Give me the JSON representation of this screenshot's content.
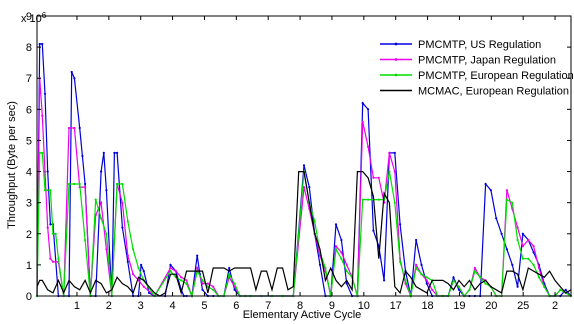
{
  "chart_data": {
    "type": "line",
    "title": "",
    "xlabel": "Elementary Active Cycle",
    "ylabel": "Throughput (Byte per sec)",
    "y_multiplier": "x 10",
    "y_multiplier_exp": "6",
    "ylim": [
      0,
      9
    ],
    "yticks": [
      "0",
      "1",
      "2",
      "3",
      "4",
      "5",
      "6",
      "7",
      "8",
      "9"
    ],
    "xlim": [
      0,
      100
    ],
    "xtick_labels": [
      "1",
      "2",
      "3",
      "4",
      "5",
      "6",
      "7",
      "8",
      "9",
      "10",
      "17",
      "18",
      "19",
      "20",
      "25",
      "2"
    ],
    "legend_position": "top-right",
    "grid": false,
    "series": [
      {
        "name": "PMCMTP, US Regulation",
        "color": "#0000dd",
        "marker": "dot",
        "x": [
          0,
          0.5,
          1,
          1.5,
          2,
          2.5,
          3,
          4,
          5,
          6,
          6.5,
          7,
          8,
          8.5,
          9,
          10,
          11,
          12,
          12.5,
          13,
          14,
          14.5,
          15,
          16,
          17,
          18,
          19,
          19.5,
          20,
          21,
          22,
          24,
          25,
          26,
          27,
          27.5,
          28,
          29,
          30,
          30.5,
          31,
          32,
          33,
          34,
          35,
          36,
          37,
          38,
          39,
          40,
          42,
          44,
          46,
          48,
          50,
          51,
          52,
          53,
          54,
          55,
          56,
          57,
          58,
          59,
          60,
          61,
          62,
          63,
          64,
          65,
          66,
          67,
          68,
          69,
          70,
          71,
          72,
          73,
          74,
          75,
          76,
          77,
          78,
          79,
          80,
          81,
          82,
          83,
          84,
          85,
          86,
          87,
          88,
          89,
          90,
          91,
          92,
          93,
          94,
          95,
          96,
          97,
          98,
          99,
          100
        ],
        "y": [
          0,
          8.1,
          8.1,
          6.5,
          4.0,
          2.3,
          2.3,
          0,
          0,
          0,
          7.2,
          7.0,
          5.4,
          4.5,
          3.6,
          0,
          0,
          4.0,
          4.6,
          3.4,
          0,
          4.6,
          4.6,
          2.2,
          1.1,
          0,
          0,
          1.0,
          0.8,
          0.1,
          0,
          0,
          1.0,
          0.8,
          0.2,
          0,
          0,
          0,
          1.3,
          0.7,
          0.2,
          0,
          0,
          0,
          0,
          0.9,
          0.2,
          0,
          0,
          0,
          0,
          0,
          0,
          0,
          4.2,
          3.5,
          2.0,
          1.0,
          0,
          0,
          2.3,
          1.8,
          0.4,
          0,
          0,
          6.2,
          6.0,
          2.1,
          1.6,
          0.5,
          4.6,
          4.6,
          2.3,
          0.8,
          0,
          1.8,
          1.0,
          0.4,
          0,
          0,
          0,
          0,
          0.6,
          0.2,
          0,
          0,
          0,
          0,
          3.6,
          3.4,
          2.5,
          2.0,
          1.5,
          1.0,
          0.3,
          2.0,
          1.8,
          1.4,
          1.0,
          0.4,
          0,
          0,
          0,
          0.2,
          0
        ]
      },
      {
        "name": "PMCMTP, Japan Regulation",
        "color": "#ee00ee",
        "marker": "dot",
        "x": [
          0,
          0.5,
          1,
          1.5,
          2,
          2.5,
          3,
          3.5,
          4,
          5,
          6,
          7,
          8,
          9,
          10,
          11,
          12,
          13,
          14,
          15,
          16,
          17,
          18,
          19,
          20,
          22,
          25,
          26,
          27,
          28,
          29,
          30,
          31,
          32,
          33,
          34,
          35,
          36,
          37,
          38,
          39,
          40,
          42,
          44,
          46,
          48,
          50,
          51,
          52,
          53,
          54,
          55,
          56,
          57,
          58,
          59,
          60,
          61,
          62,
          63,
          64,
          65,
          66,
          67,
          68,
          69,
          70,
          71,
          72,
          73,
          74,
          75,
          76,
          77,
          78,
          79,
          80,
          81,
          82,
          83,
          84,
          85,
          86,
          87,
          88,
          89,
          90,
          91,
          92,
          93,
          94,
          95,
          96,
          97,
          98,
          99,
          100
        ],
        "y": [
          0,
          7.0,
          5.8,
          4.0,
          2.2,
          1.2,
          1.1,
          1.1,
          1.1,
          0,
          5.4,
          5.4,
          3.5,
          3.5,
          0,
          2.6,
          3.0,
          1.5,
          0,
          3.6,
          3.0,
          1.3,
          0.7,
          0.5,
          0.3,
          0,
          0.9,
          0.8,
          0.6,
          0.5,
          0,
          0.9,
          0.4,
          0.4,
          0.3,
          0,
          0,
          0.6,
          0.3,
          0,
          0,
          0,
          0,
          0,
          0,
          0,
          3.5,
          2.8,
          2.0,
          1.3,
          0.8,
          0,
          1.6,
          1.4,
          1.0,
          0.6,
          0,
          5.6,
          4.8,
          3.8,
          3.8,
          3.0,
          4.6,
          4.0,
          1.2,
          0.4,
          0,
          1.0,
          0.7,
          0.5,
          0.2,
          0,
          0,
          0,
          0.5,
          0.3,
          0,
          0.2,
          0.9,
          0.6,
          0.5,
          0.3,
          0,
          0,
          3.4,
          2.8,
          2.2,
          1.6,
          1.8,
          1.6,
          0.9,
          0.3,
          0,
          0,
          0.2,
          0.1,
          0
        ],
        "note": ""
      },
      {
        "name": "PMCMTP, European Regulation",
        "color": "#00dd00",
        "marker": "dot",
        "x": [
          0,
          0.5,
          1,
          1.5,
          2,
          2.5,
          3,
          3.5,
          4,
          5,
          6,
          7,
          8,
          9,
          10,
          11,
          12,
          13,
          14,
          15,
          16,
          17,
          18,
          19,
          20,
          22,
          25,
          26,
          27,
          28,
          29,
          30,
          31,
          32,
          33,
          34,
          35,
          36,
          37,
          38,
          39,
          40,
          42,
          44,
          46,
          48,
          50,
          51,
          52,
          53,
          54,
          55,
          56,
          57,
          58,
          59,
          60,
          61,
          62,
          63,
          64,
          65,
          66,
          67,
          68,
          69,
          70,
          71,
          72,
          73,
          74,
          75,
          76,
          77,
          78,
          79,
          80,
          81,
          82,
          83,
          84,
          85,
          86,
          87,
          88,
          89,
          90,
          91,
          92,
          93,
          94,
          95,
          96,
          97,
          98,
          99,
          100
        ],
        "y": [
          0,
          4.6,
          4.6,
          3.4,
          3.4,
          3.4,
          2.0,
          2.0,
          1.2,
          0,
          3.6,
          3.6,
          3.6,
          1.8,
          0,
          3.1,
          2.5,
          2.0,
          0,
          3.6,
          3.6,
          2.4,
          1.5,
          0.9,
          0.5,
          0,
          0.8,
          0.6,
          0.5,
          0.4,
          0,
          0.8,
          0.5,
          0.3,
          0.2,
          0,
          0,
          0.7,
          0.4,
          0,
          0,
          0,
          0,
          0,
          0,
          0,
          4.0,
          3.0,
          2.4,
          1.4,
          0.9,
          0,
          1.5,
          1.2,
          0.8,
          0.6,
          0,
          3.1,
          3.1,
          3.1,
          3.1,
          3.1,
          4.0,
          3.0,
          1.1,
          0.5,
          0,
          0.9,
          0.7,
          0.6,
          0.5,
          0,
          0,
          0,
          0.5,
          0.3,
          0,
          0.2,
          0.8,
          0.6,
          0.4,
          0.3,
          0,
          0,
          3.1,
          3.0,
          1.8,
          1.2,
          1.2,
          1.0,
          0.6,
          0.3,
          0,
          0,
          0.2,
          0.1,
          0
        ]
      },
      {
        "name": "MCMAC, European Regulation",
        "color": "#000000",
        "marker": "none",
        "x": [
          0,
          0.5,
          1,
          2,
          3,
          4,
          5,
          6,
          7,
          8,
          9,
          10,
          11,
          12,
          13,
          14,
          15,
          16,
          17,
          18,
          19,
          20,
          21,
          22,
          23,
          24,
          25,
          26,
          27,
          28,
          29,
          30,
          31,
          32,
          33,
          34,
          35,
          36,
          37,
          38,
          39,
          40,
          41,
          42,
          43,
          44,
          45,
          46,
          47,
          48,
          49,
          50,
          51,
          52,
          53,
          54,
          55,
          56,
          57,
          58,
          59,
          60,
          61,
          62,
          63,
          64,
          65,
          66,
          67,
          68,
          69,
          70,
          71,
          72,
          73,
          74,
          75,
          76,
          77,
          78,
          79,
          80,
          81,
          82,
          83,
          84,
          85,
          86,
          87,
          88,
          89,
          90,
          91,
          92,
          93,
          94,
          95,
          96,
          97,
          98,
          99,
          100
        ],
        "y": [
          0.3,
          0.5,
          0.5,
          0.2,
          0.1,
          0.5,
          0.1,
          0.5,
          0.3,
          0.2,
          0.5,
          0.1,
          0.5,
          0.4,
          0.1,
          0.2,
          0.6,
          0.4,
          0.3,
          0.1,
          0.6,
          0.5,
          0.3,
          0.1,
          0,
          0.1,
          0.7,
          0.7,
          0.1,
          0.8,
          0.8,
          0.8,
          0.8,
          0.1,
          0.9,
          0.9,
          0.9,
          0.8,
          0.9,
          0.9,
          0.9,
          0.9,
          0.2,
          0.8,
          0.8,
          0.2,
          0.9,
          0.9,
          0.2,
          0.3,
          4.0,
          4.0,
          3.0,
          2.0,
          1.5,
          0.5,
          0.9,
          0.5,
          0.3,
          0.5,
          0.2,
          4.0,
          4.0,
          3.8,
          3.2,
          1.2,
          3.3,
          3.0,
          0.3,
          0.1,
          0.8,
          0.6,
          0.3,
          0.2,
          0.1,
          0.5,
          0.5,
          0.5,
          0.4,
          0.2,
          0.5,
          0.3,
          0.5,
          0.2,
          0.4,
          0.5,
          0.3,
          0.2,
          0.1,
          0.8,
          0.8,
          0.7,
          0.2,
          0.9,
          0.8,
          0.7,
          0.6,
          0.8,
          0.5,
          0.3,
          0.1,
          0.2
        ]
      }
    ]
  }
}
